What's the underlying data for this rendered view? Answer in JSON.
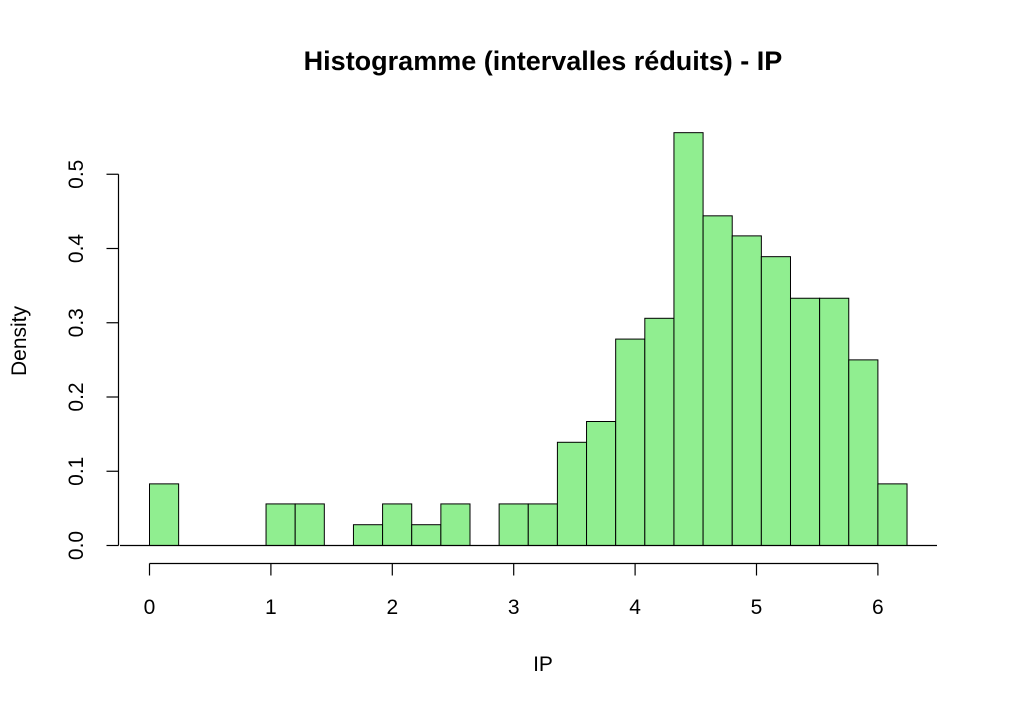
{
  "chart_data": {
    "type": "bar",
    "title": "Histogramme (intervalles réduits) - IP",
    "xlabel": "IP",
    "ylabel": "Density",
    "bin_width": 0.24,
    "x_start": 0,
    "bins": [
      {
        "from": 0.0,
        "to": 0.24,
        "density": 0.083
      },
      {
        "from": 0.24,
        "to": 0.48,
        "density": 0.0
      },
      {
        "from": 0.48,
        "to": 0.72,
        "density": 0.0
      },
      {
        "from": 0.72,
        "to": 0.96,
        "density": 0.0
      },
      {
        "from": 0.96,
        "to": 1.2,
        "density": 0.056
      },
      {
        "from": 1.2,
        "to": 1.44,
        "density": 0.056
      },
      {
        "from": 1.44,
        "to": 1.68,
        "density": 0.0
      },
      {
        "from": 1.68,
        "to": 1.92,
        "density": 0.028
      },
      {
        "from": 1.92,
        "to": 2.16,
        "density": 0.056
      },
      {
        "from": 2.16,
        "to": 2.4,
        "density": 0.028
      },
      {
        "from": 2.4,
        "to": 2.64,
        "density": 0.056
      },
      {
        "from": 2.64,
        "to": 2.88,
        "density": 0.0
      },
      {
        "from": 2.88,
        "to": 3.12,
        "density": 0.056
      },
      {
        "from": 3.12,
        "to": 3.36,
        "density": 0.056
      },
      {
        "from": 3.36,
        "to": 3.6,
        "density": 0.139
      },
      {
        "from": 3.6,
        "to": 3.84,
        "density": 0.167
      },
      {
        "from": 3.84,
        "to": 4.08,
        "density": 0.278
      },
      {
        "from": 4.08,
        "to": 4.32,
        "density": 0.306
      },
      {
        "from": 4.32,
        "to": 4.56,
        "density": 0.556
      },
      {
        "from": 4.56,
        "to": 4.8,
        "density": 0.444
      },
      {
        "from": 4.8,
        "to": 5.04,
        "density": 0.417
      },
      {
        "from": 5.04,
        "to": 5.28,
        "density": 0.389
      },
      {
        "from": 5.28,
        "to": 5.52,
        "density": 0.333
      },
      {
        "from": 5.52,
        "to": 5.76,
        "density": 0.333
      },
      {
        "from": 5.76,
        "to": 6.0,
        "density": 0.25
      },
      {
        "from": 6.0,
        "to": 6.24,
        "density": 0.083
      }
    ],
    "xticks": [
      0,
      1,
      2,
      3,
      4,
      5,
      6
    ],
    "xtick_labels": [
      "0",
      "1",
      "2",
      "3",
      "4",
      "5",
      "6"
    ],
    "yticks": [
      0.0,
      0.1,
      0.2,
      0.3,
      0.4,
      0.5
    ],
    "ytick_labels": [
      "0.0",
      "0.1",
      "0.2",
      "0.3",
      "0.4",
      "0.5"
    ],
    "xlim": [
      0,
      6.5
    ],
    "ylim": [
      0,
      0.556
    ],
    "grid": false,
    "legend": "none",
    "colors": {
      "bar_fill": "#90ee90",
      "bar_stroke": "#000000",
      "background": "#ffffff"
    }
  }
}
